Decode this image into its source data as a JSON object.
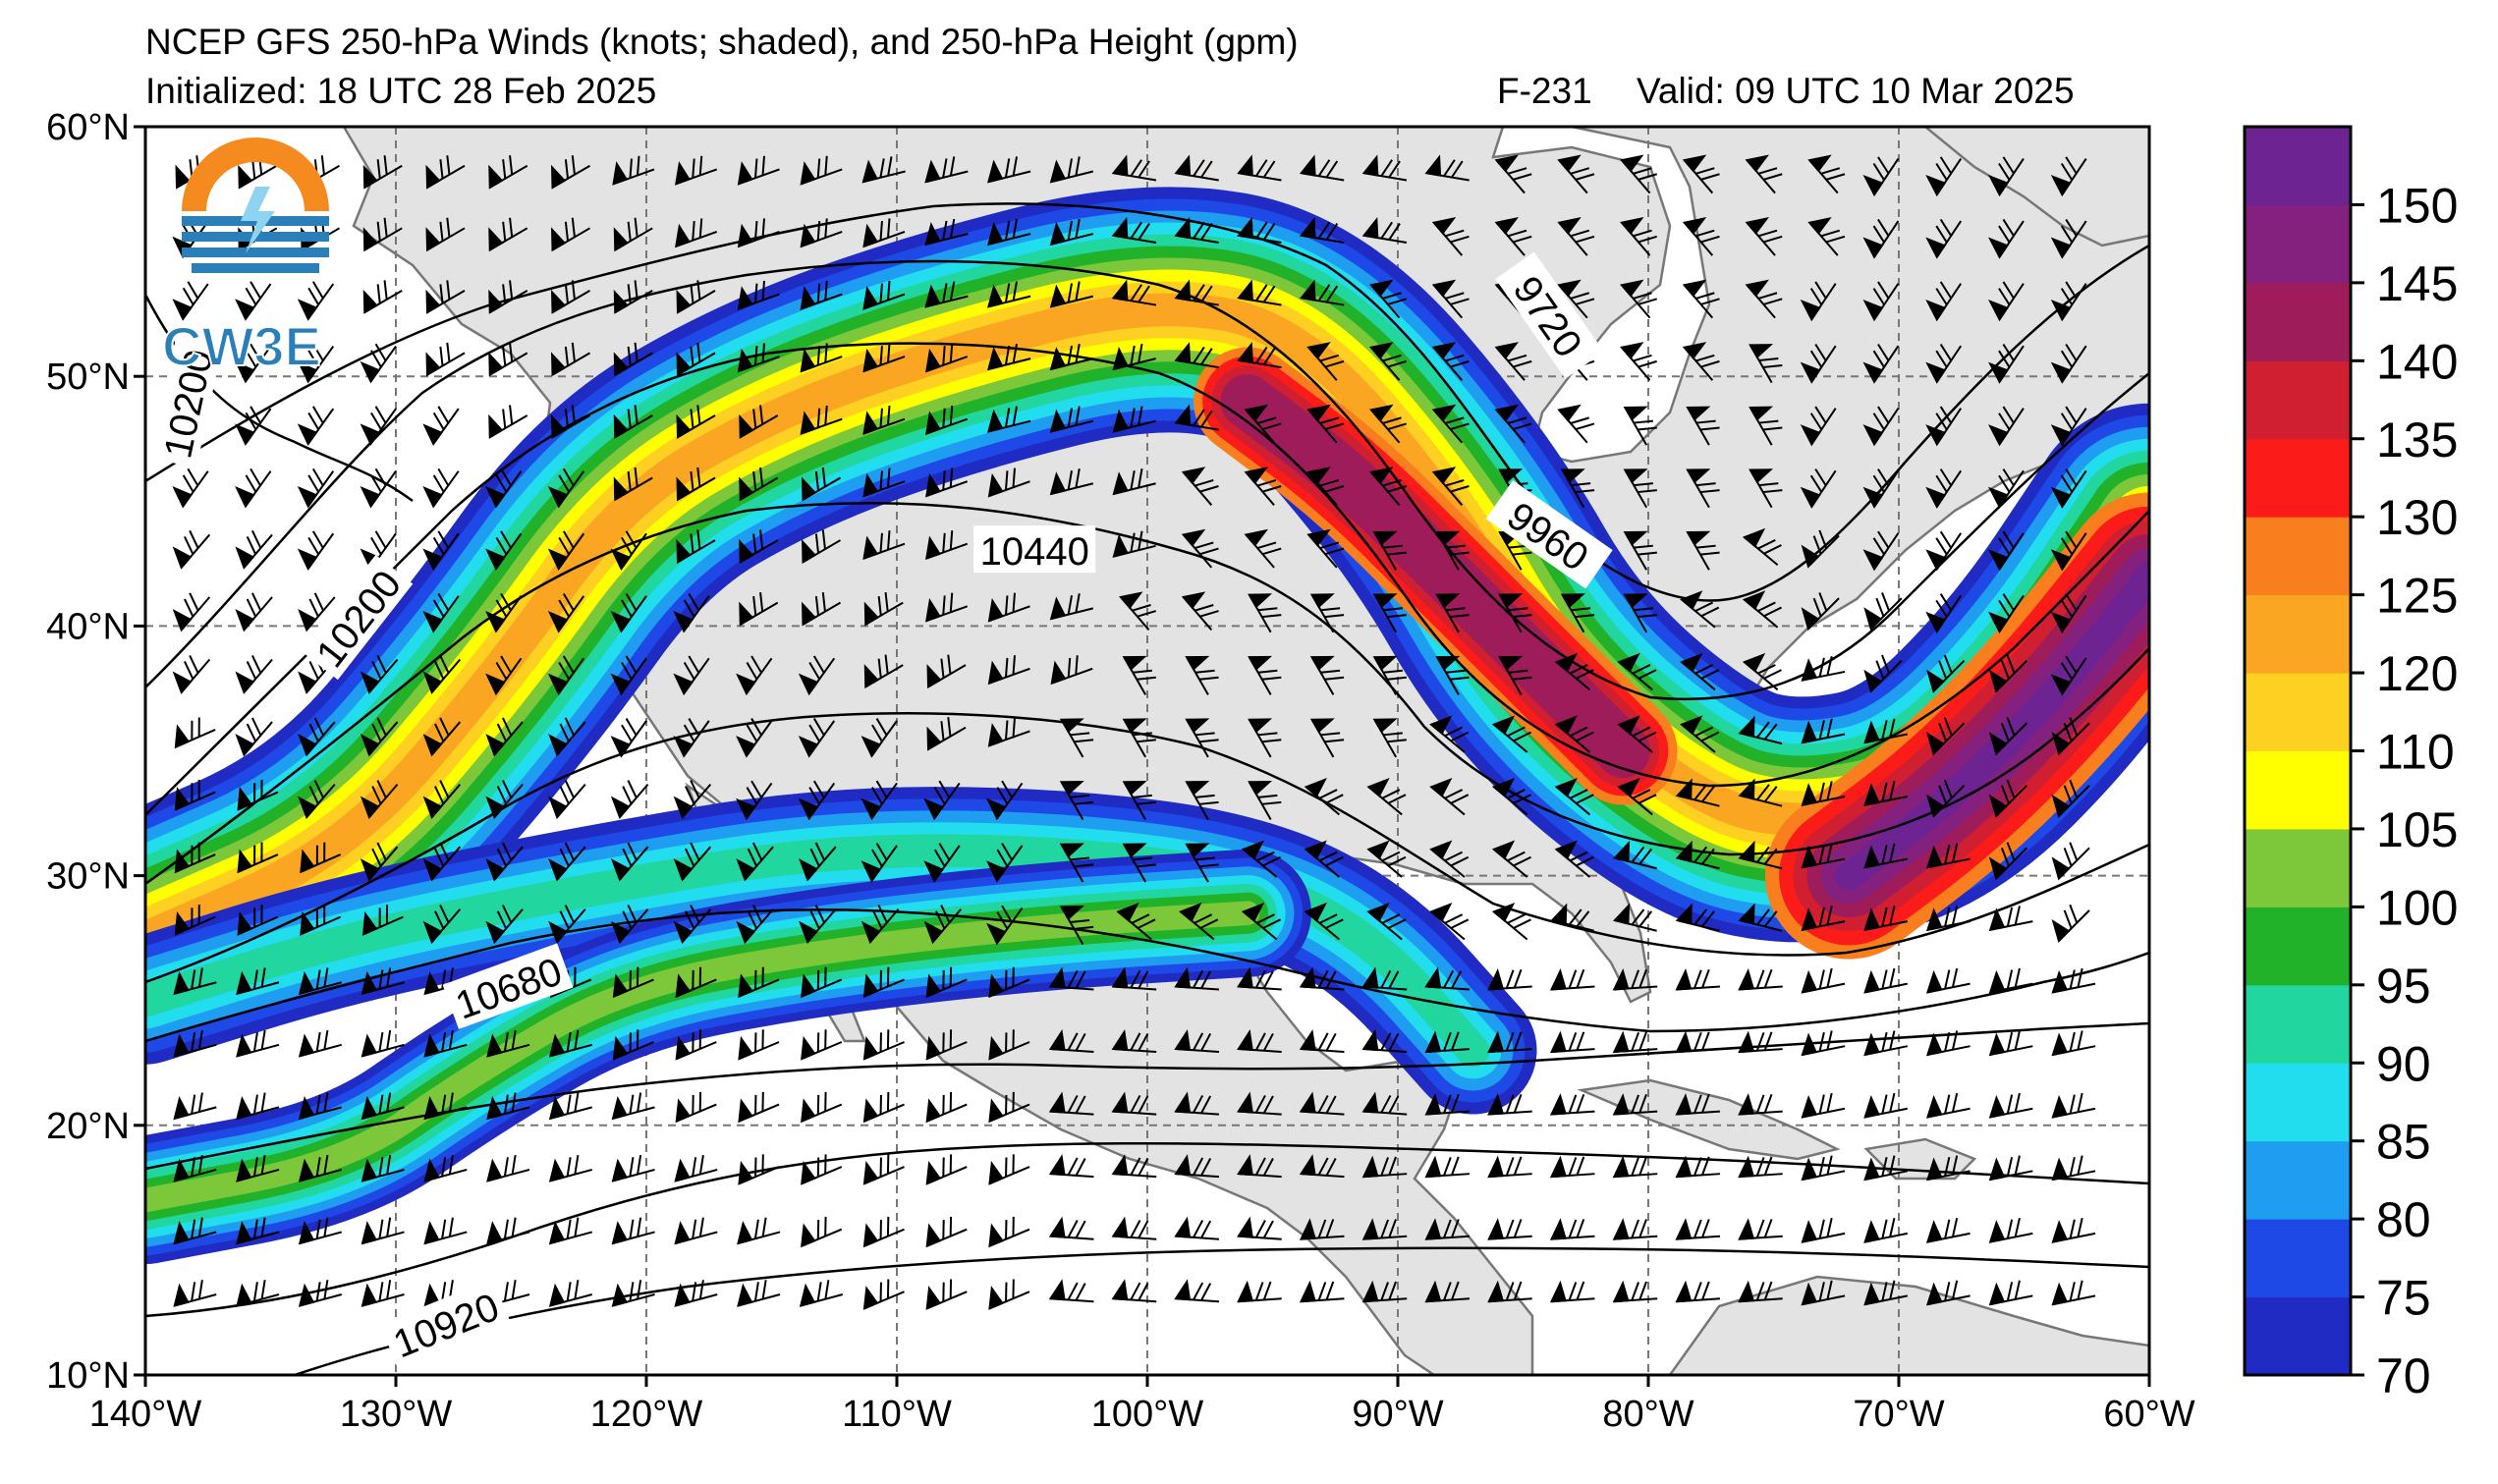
{
  "title_line1": "NCEP GFS 250-hPa Winds (knots; shaded), and 250-hPa Height (gpm)",
  "title_initialized": "Initialized: 18 UTC 28 Feb 2025",
  "title_forecast": "F-231",
  "title_valid": "Valid: 09 UTC 10 Mar 2025",
  "logo_text": "CW3E",
  "map": {
    "lon_range": [
      -140,
      -60
    ],
    "lat_range": [
      10,
      60
    ],
    "lon_ticks": [
      {
        "lon": -140,
        "label": "140°W"
      },
      {
        "lon": -130,
        "label": "130°W"
      },
      {
        "lon": -120,
        "label": "120°W"
      },
      {
        "lon": -110,
        "label": "110°W"
      },
      {
        "lon": -100,
        "label": "100°W"
      },
      {
        "lon": -90,
        "label": "90°W"
      },
      {
        "lon": -80,
        "label": "80°W"
      },
      {
        "lon": -70,
        "label": "70°W"
      },
      {
        "lon": -60,
        "label": "60°W"
      }
    ],
    "lat_ticks": [
      {
        "lat": 60,
        "label": "60°N"
      },
      {
        "lat": 50,
        "label": "50°N"
      },
      {
        "lat": 40,
        "label": "40°N"
      },
      {
        "lat": 30,
        "label": "30°N"
      },
      {
        "lat": 20,
        "label": "20°N"
      },
      {
        "lat": 10,
        "label": "10°N"
      }
    ],
    "gridlines": true,
    "land_color": "#e3e3e3",
    "ocean_color": "#ffffff"
  },
  "height_labels": [
    {
      "text": "10200",
      "lon": -138.3,
      "lat": 48.9,
      "angle": -78
    },
    {
      "text": "10200",
      "lon": -131.5,
      "lat": 40.3,
      "angle": -52
    },
    {
      "text": "9720",
      "lon": -84.0,
      "lat": 52.4,
      "angle": 55
    },
    {
      "text": "9960",
      "lon": -84.0,
      "lat": 43.6,
      "angle": 35
    },
    {
      "text": "10440",
      "lon": -104.5,
      "lat": 43.0,
      "angle": 0
    },
    {
      "text": "10680",
      "lon": -125.5,
      "lat": 25.5,
      "angle": -20
    },
    {
      "text": "10920",
      "lon": -128.0,
      "lat": 12.0,
      "angle": -22
    }
  ],
  "colorbar": {
    "levels": [
      70,
      75,
      80,
      85,
      90,
      95,
      100,
      105,
      110,
      120,
      125,
      130,
      135,
      140,
      145,
      150
    ],
    "colors": [
      "#1f2bc2",
      "#1e49e6",
      "#1f9df0",
      "#22ddee",
      "#22d6a0",
      "#22b22a",
      "#7cc83a",
      "#ffff00",
      "#fed021",
      "#fba623",
      "#f97f1e",
      "#fb1c1a",
      "#cf1f30",
      "#9f1c5a",
      "#84207e",
      "#6d2392"
    ],
    "labels": [
      "70",
      "75",
      "80",
      "85",
      "90",
      "95",
      "100",
      "105",
      "110",
      "120",
      "125",
      "130",
      "135",
      "140",
      "145",
      "150"
    ]
  },
  "jets": [
    {
      "name": "northern",
      "points": [
        [
          -140,
          27.5
        ],
        [
          -132,
          31
        ],
        [
          -126,
          38
        ],
        [
          -121,
          45
        ],
        [
          -115,
          48.5
        ],
        [
          -108,
          51
        ],
        [
          -100,
          53
        ],
        [
          -94,
          52
        ],
        [
          -88,
          45
        ],
        [
          -84,
          38
        ],
        [
          -78,
          33
        ],
        [
          -74,
          32
        ],
        [
          -69,
          33
        ],
        [
          -64,
          38
        ],
        [
          -60,
          44
        ]
      ]
    },
    {
      "name": "subtropical",
      "points": [
        [
          -140,
          25
        ],
        [
          -132,
          27.5
        ],
        [
          -122,
          29.5
        ],
        [
          -113,
          31
        ],
        [
          -104,
          31
        ],
        [
          -96,
          30
        ],
        [
          -91,
          27.5
        ],
        [
          -87,
          23
        ]
      ]
    },
    {
      "name": "southern",
      "points": [
        [
          -140,
          17
        ],
        [
          -132,
          18.5
        ],
        [
          -127,
          22
        ],
        [
          -121,
          25.5
        ],
        [
          -113,
          27
        ],
        [
          -104,
          28
        ],
        [
          -96,
          28.5
        ]
      ]
    }
  ]
}
